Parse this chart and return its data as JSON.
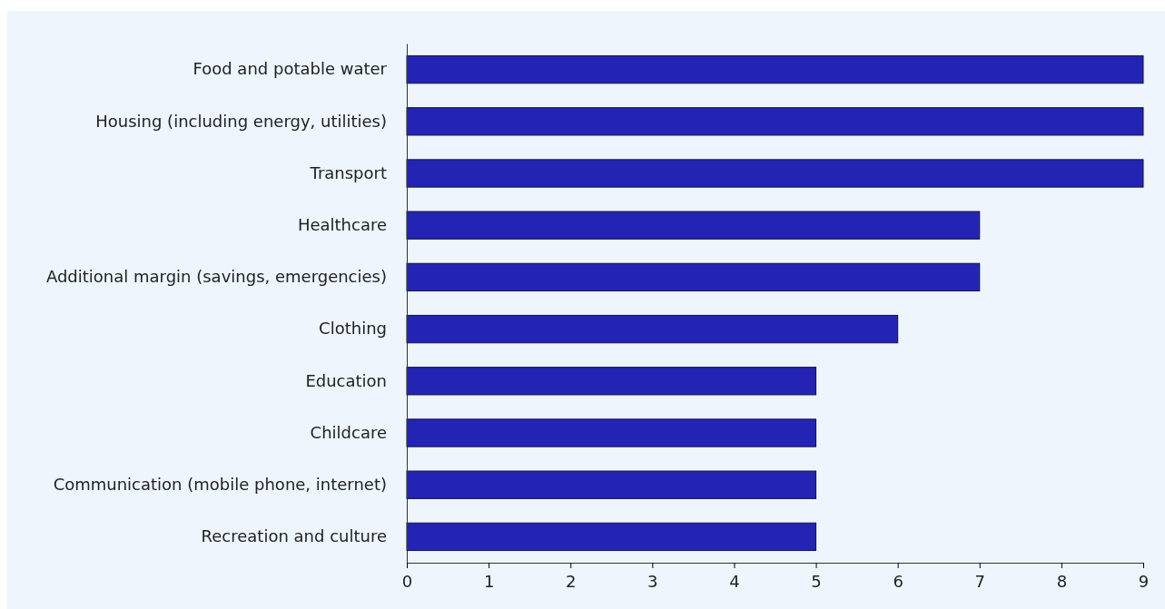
{
  "chart_data": {
    "type": "bar",
    "orientation": "horizontal",
    "categories": [
      "Food and potable water",
      "Housing (including energy, utilities)",
      "Transport",
      "Healthcare",
      "Additional margin (savings, emergencies)",
      "Clothing",
      "Education",
      "Childcare",
      "Communication (mobile phone, internet)",
      "Recreation and culture"
    ],
    "values": [
      9,
      9,
      9,
      7,
      7,
      6,
      5,
      5,
      5,
      5
    ],
    "color": "#2424b4",
    "xlim": [
      0,
      9
    ],
    "xticks": [
      0,
      1,
      2,
      3,
      4,
      5,
      6,
      7,
      8,
      9
    ],
    "grid": false
  }
}
